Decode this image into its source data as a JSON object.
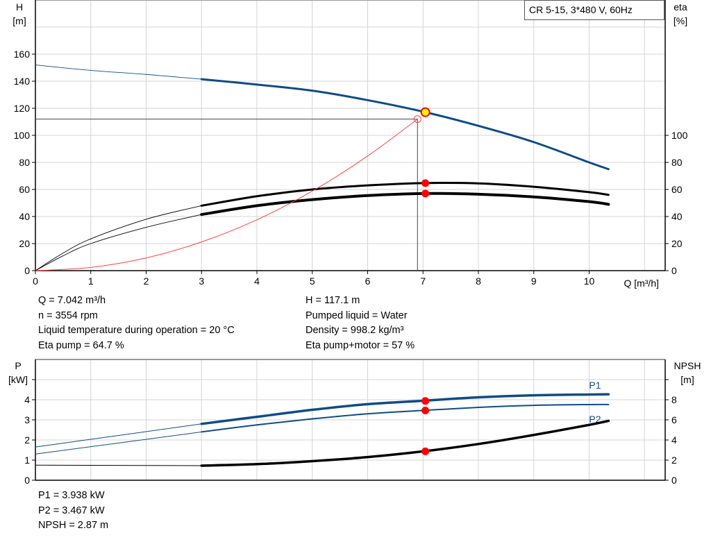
{
  "chart_data": [
    {
      "type": "line",
      "title": "CR 5-15, 3*480 V, 60Hz",
      "xlabel": "Q [m³/h]",
      "ylabel_left": [
        "H",
        "[m]"
      ],
      "ylabel_right": [
        "eta",
        "[%]"
      ],
      "xlim": [
        0,
        11.4
      ],
      "ylim_left": [
        0,
        200
      ],
      "ylim_right": [
        0,
        200
      ],
      "x_ticks": [
        0,
        1,
        2,
        3,
        4,
        5,
        6,
        7,
        8,
        9,
        10
      ],
      "y_ticks_left": [
        0,
        20,
        40,
        60,
        80,
        100,
        120,
        140,
        160
      ],
      "y_ticks_right": [
        0,
        20,
        40,
        60,
        80,
        100
      ],
      "grid": true,
      "colors": {
        "head": "#0e4c85",
        "eta": "#000000",
        "system": "#ff4040",
        "duty_point": "#ffff00",
        "marker": "#ff0000"
      },
      "series": [
        {
          "id": "head",
          "axis": "left",
          "thin_until": 3,
          "x": [
            0,
            1,
            2,
            3,
            4,
            5,
            6,
            7,
            8,
            9,
            10,
            10.35
          ],
          "y": [
            152,
            148,
            145,
            141.5,
            137.5,
            133,
            126,
            117.5,
            107,
            95,
            80,
            75
          ]
        },
        {
          "id": "eta-pump",
          "axis": "right",
          "thin_until": 3,
          "x": [
            0,
            0.5,
            1,
            2,
            3,
            4,
            5,
            6,
            7,
            8,
            9,
            10,
            10.35
          ],
          "y": [
            0,
            13,
            23.5,
            38,
            48,
            55,
            60,
            63,
            64.7,
            64.5,
            62,
            58,
            56
          ]
        },
        {
          "id": "eta-pump-motor",
          "axis": "right",
          "thin_until": 3,
          "x": [
            0,
            0.5,
            1,
            2,
            3,
            4,
            5,
            6,
            7,
            8,
            9,
            10,
            10.35
          ],
          "y": [
            0,
            11,
            20,
            32,
            41.5,
            48,
            52.5,
            55.5,
            57,
            56.5,
            54.5,
            51,
            49
          ]
        },
        {
          "id": "system-curve",
          "axis": "left",
          "x": [
            0,
            1,
            2,
            3,
            4,
            5,
            6,
            6.9
          ],
          "y": [
            0,
            2.4,
            9.4,
            21.2,
            37.6,
            58.8,
            84.7,
            112
          ]
        }
      ],
      "reference_point": {
        "x": 6.9,
        "y": 112
      },
      "duty_point": {
        "x": 7.042,
        "y": 117.1
      },
      "markers": [
        {
          "x": 7.042,
          "y": 64.7
        },
        {
          "x": 7.042,
          "y": 57
        }
      ]
    },
    {
      "type": "line",
      "ylabel_left": [
        "P",
        "[kW]"
      ],
      "ylabel_right": [
        "NPSH",
        "[m]"
      ],
      "xlim": [
        0,
        11.4
      ],
      "ylim_left": [
        0,
        6
      ],
      "ylim_right": [
        0,
        12
      ],
      "y_ticks_left": [
        0,
        1,
        2,
        3,
        4
      ],
      "y_ticks_right": [
        0,
        2,
        4,
        6,
        8
      ],
      "grid": true,
      "series": [
        {
          "id": "P1",
          "name": "P1",
          "axis": "left",
          "color": "#0e4c85",
          "thin_until": 3,
          "x": [
            0,
            3,
            4,
            5,
            6,
            7,
            8,
            9,
            10,
            10.35
          ],
          "y": [
            1.65,
            2.8,
            3.15,
            3.5,
            3.78,
            3.95,
            4.12,
            4.22,
            4.26,
            4.27
          ]
        },
        {
          "id": "P2",
          "name": "P2",
          "axis": "left",
          "color": "#0e4c85",
          "thin_until": 3,
          "x": [
            0,
            3,
            4,
            5,
            6,
            7,
            8,
            9,
            10,
            10.35
          ],
          "y": [
            1.3,
            2.4,
            2.75,
            3.05,
            3.3,
            3.47,
            3.62,
            3.72,
            3.76,
            3.76
          ]
        },
        {
          "id": "NPSH",
          "axis": "right",
          "color": "#000000",
          "thin_until": 3,
          "x": [
            0,
            3,
            4,
            5,
            6,
            7,
            8,
            9,
            10,
            10.35
          ],
          "y": [
            1.5,
            1.45,
            1.6,
            1.9,
            2.3,
            2.87,
            3.6,
            4.5,
            5.5,
            5.9
          ]
        }
      ],
      "markers": [
        {
          "axis": "left",
          "x": 7.042,
          "y": 3.938
        },
        {
          "axis": "left",
          "x": 7.042,
          "y": 3.467
        },
        {
          "axis": "right",
          "x": 7.042,
          "y": 2.87
        }
      ]
    }
  ],
  "info_left": [
    "Q = 7.042 m³/h",
    "n = 3554 rpm",
    "Liquid temperature during operation = 20 °C",
    "Eta pump = 64.7 %"
  ],
  "info_right": [
    "H = 117.1 m",
    "Pumped liquid = Water",
    "Density = 998.2 kg/m³",
    "Eta pump+motor = 57 %"
  ],
  "info_bottom": [
    "P1 = 3.938 kW",
    "P2 = 3.467 kW",
    "NPSH = 2.87 m"
  ]
}
